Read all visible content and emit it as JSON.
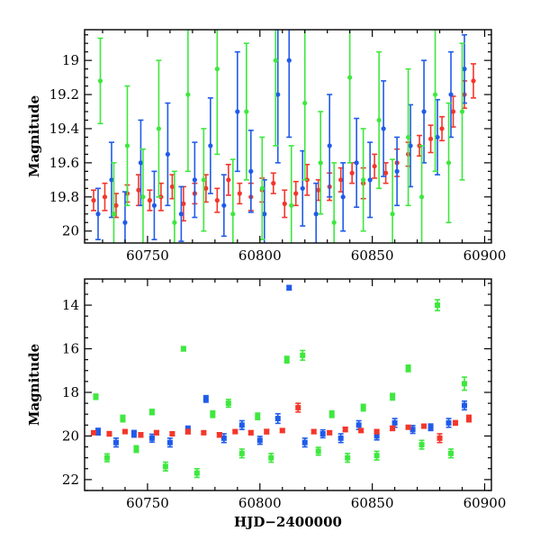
{
  "chart_data": [
    {
      "type": "scatter",
      "title": "",
      "xlabel": "",
      "ylabel": "Magnitude",
      "xlim": [
        60722,
        60903
      ],
      "ylim": [
        20.07,
        18.82
      ],
      "y_inverted": true,
      "grid": false,
      "legend": "none",
      "x_ticks": [
        60750,
        60800,
        60850,
        60900
      ],
      "x_tick_labels": [
        "60750",
        "60800",
        "60850",
        "60900"
      ],
      "y_ticks": [
        19,
        19.2,
        19.4,
        19.6,
        19.8,
        20
      ],
      "y_tick_labels": [
        "19",
        "19.2",
        "19.4",
        "19.6",
        "19.8",
        "20"
      ],
      "error_bars": true,
      "series": [
        {
          "color": "#f4362a",
          "x": [
            60726,
            60731,
            60736,
            60741,
            60746,
            60751,
            60756,
            60761,
            60766,
            60771,
            60776,
            60781,
            60786,
            60791,
            60796,
            60801,
            60806,
            60811,
            60816,
            60821,
            60826,
            60831,
            60836,
            60841,
            60846,
            60851,
            60856,
            60861,
            60866,
            60871,
            60876,
            60881,
            60886,
            60891,
            60895
          ],
          "y": [
            19.82,
            19.8,
            19.85,
            19.78,
            19.76,
            19.82,
            19.8,
            19.74,
            19.84,
            19.78,
            19.75,
            19.82,
            19.7,
            19.78,
            19.8,
            19.76,
            19.72,
            19.84,
            19.78,
            19.7,
            19.76,
            19.74,
            19.7,
            19.66,
            19.72,
            19.62,
            19.66,
            19.6,
            19.55,
            19.5,
            19.46,
            19.4,
            19.3,
            19.2,
            19.12
          ],
          "err": [
            0.06,
            0.08,
            0.07,
            0.05,
            0.09,
            0.06,
            0.08,
            0.07,
            0.1,
            0.06,
            0.08,
            0.07,
            0.09,
            0.06,
            0.08,
            0.07,
            0.06,
            0.08,
            0.07,
            0.09,
            0.06,
            0.08,
            0.07,
            0.06,
            0.09,
            0.07,
            0.06,
            0.08,
            0.07,
            0.06,
            0.08,
            0.07,
            0.09,
            0.08,
            0.1
          ]
        },
        {
          "color": "#1f5bea",
          "x": [
            60728,
            60734,
            60740,
            60747,
            60753,
            60759,
            60765,
            60771,
            60778,
            60784,
            60790,
            60796,
            60802,
            60808,
            60813,
            60819,
            60825,
            60831,
            60837,
            60843,
            60849,
            60855,
            60861,
            60867,
            60873,
            60879,
            60885,
            60891
          ],
          "y": [
            19.9,
            19.7,
            19.95,
            19.6,
            19.85,
            19.55,
            19.9,
            19.7,
            19.5,
            19.85,
            19.3,
            19.65,
            19.9,
            19.2,
            19.0,
            19.75,
            19.9,
            19.5,
            19.8,
            19.6,
            19.7,
            19.4,
            19.65,
            19.5,
            19.3,
            19.45,
            19.2,
            19.05
          ],
          "err": [
            0.15,
            0.22,
            0.18,
            0.25,
            0.2,
            0.3,
            0.16,
            0.22,
            0.28,
            0.18,
            0.35,
            0.24,
            0.2,
            0.4,
            0.45,
            0.22,
            0.18,
            0.3,
            0.2,
            0.26,
            0.22,
            0.28,
            0.2,
            0.24,
            0.3,
            0.22,
            0.25,
            0.2
          ]
        },
        {
          "color": "#3ee83e",
          "x": [
            60729,
            60735,
            60741,
            60748,
            60755,
            60762,
            60768,
            60775,
            60781,
            60788,
            60794,
            60801,
            60807,
            60814,
            60820,
            60827,
            60833,
            60840,
            60846,
            60853,
            60859,
            60866,
            60872,
            60878,
            60884,
            60890
          ],
          "y": [
            19.12,
            19.9,
            19.5,
            19.8,
            19.4,
            19.95,
            19.2,
            19.7,
            19.05,
            19.9,
            19.3,
            19.75,
            19.0,
            19.85,
            19.25,
            19.6,
            19.95,
            19.1,
            19.7,
            19.35,
            19.9,
            19.45,
            19.8,
            19.2,
            19.6,
            19.3
          ],
          "err": [
            0.25,
            0.3,
            0.35,
            0.28,
            0.4,
            0.3,
            0.45,
            0.3,
            0.5,
            0.32,
            0.4,
            0.3,
            0.5,
            0.35,
            0.45,
            0.3,
            0.35,
            0.5,
            0.3,
            0.4,
            0.32,
            0.4,
            0.3,
            0.45,
            0.35,
            0.4
          ]
        }
      ]
    },
    {
      "type": "scatter",
      "title": "",
      "xlabel": "HJD−2400000",
      "ylabel": "Magnitude",
      "xlim": [
        60722,
        60903
      ],
      "ylim": [
        22.5,
        12.8
      ],
      "y_inverted": true,
      "grid": false,
      "legend": "none",
      "x_ticks": [
        60750,
        60800,
        60850,
        60900
      ],
      "x_tick_labels": [
        "60750",
        "60800",
        "60850",
        "60900"
      ],
      "y_ticks": [
        14,
        16,
        18,
        20,
        22
      ],
      "y_tick_labels": [
        "14",
        "16",
        "18",
        "20",
        "22"
      ],
      "error_bars": true,
      "series": [
        {
          "color": "#3ee83e",
          "x": [
            60727,
            60732,
            60739,
            60745,
            60752,
            60758,
            60766,
            60772,
            60779,
            60786,
            60792,
            60799,
            60805,
            60812,
            60819,
            60826,
            60832,
            60839,
            60846,
            60852,
            60859,
            60866,
            60872,
            60879,
            60885,
            60891
          ],
          "y": [
            18.2,
            21.0,
            19.2,
            20.6,
            18.9,
            21.4,
            16.0,
            21.7,
            19.0,
            18.5,
            20.8,
            19.1,
            21.0,
            16.5,
            16.3,
            20.7,
            19.0,
            21.0,
            18.7,
            20.9,
            18.2,
            16.9,
            20.4,
            14.0,
            20.8,
            17.6
          ],
          "err": [
            0.12,
            0.18,
            0.15,
            0.15,
            0.12,
            0.2,
            0.1,
            0.2,
            0.15,
            0.18,
            0.2,
            0.15,
            0.2,
            0.15,
            0.22,
            0.18,
            0.15,
            0.2,
            0.15,
            0.2,
            0.15,
            0.15,
            0.2,
            0.25,
            0.2,
            0.3
          ]
        },
        {
          "color": "#1f5bea",
          "x": [
            60728,
            60736,
            60744,
            60752,
            60760,
            60768,
            60776,
            60784,
            60792,
            60800,
            60808,
            60813,
            60820,
            60828,
            60836,
            60844,
            60852,
            60860,
            60868,
            60876,
            60884,
            60891
          ],
          "y": [
            19.8,
            20.3,
            19.9,
            20.1,
            20.3,
            19.7,
            18.3,
            20.1,
            19.5,
            20.2,
            19.2,
            13.2,
            20.3,
            19.9,
            20.1,
            19.5,
            20.0,
            19.4,
            19.7,
            19.6,
            19.4,
            18.6
          ],
          "err": [
            0.15,
            0.2,
            0.15,
            0.18,
            0.2,
            0.15,
            0.15,
            0.2,
            0.2,
            0.18,
            0.22,
            0.1,
            0.2,
            0.18,
            0.2,
            0.2,
            0.18,
            0.2,
            0.18,
            0.15,
            0.2,
            0.2
          ]
        },
        {
          "color": "#f4362a",
          "x": [
            60726,
            60733,
            60740,
            60747,
            60754,
            60761,
            60768,
            60775,
            60782,
            60789,
            60796,
            60803,
            60810,
            60817,
            60824,
            60831,
            60838,
            60845,
            60852,
            60859,
            60866,
            60873,
            60880,
            60887,
            60893
          ],
          "y": [
            19.85,
            19.9,
            19.8,
            19.95,
            19.85,
            19.9,
            19.8,
            19.85,
            19.95,
            19.8,
            19.85,
            19.8,
            19.75,
            18.7,
            19.8,
            19.85,
            19.7,
            19.75,
            19.8,
            19.65,
            19.6,
            19.55,
            20.1,
            19.4,
            19.2
          ],
          "err": [
            0.08,
            0.1,
            0.08,
            0.1,
            0.09,
            0.08,
            0.1,
            0.08,
            0.1,
            0.08,
            0.09,
            0.1,
            0.08,
            0.2,
            0.09,
            0.08,
            0.1,
            0.08,
            0.09,
            0.1,
            0.08,
            0.09,
            0.2,
            0.1,
            0.15
          ]
        }
      ]
    }
  ]
}
